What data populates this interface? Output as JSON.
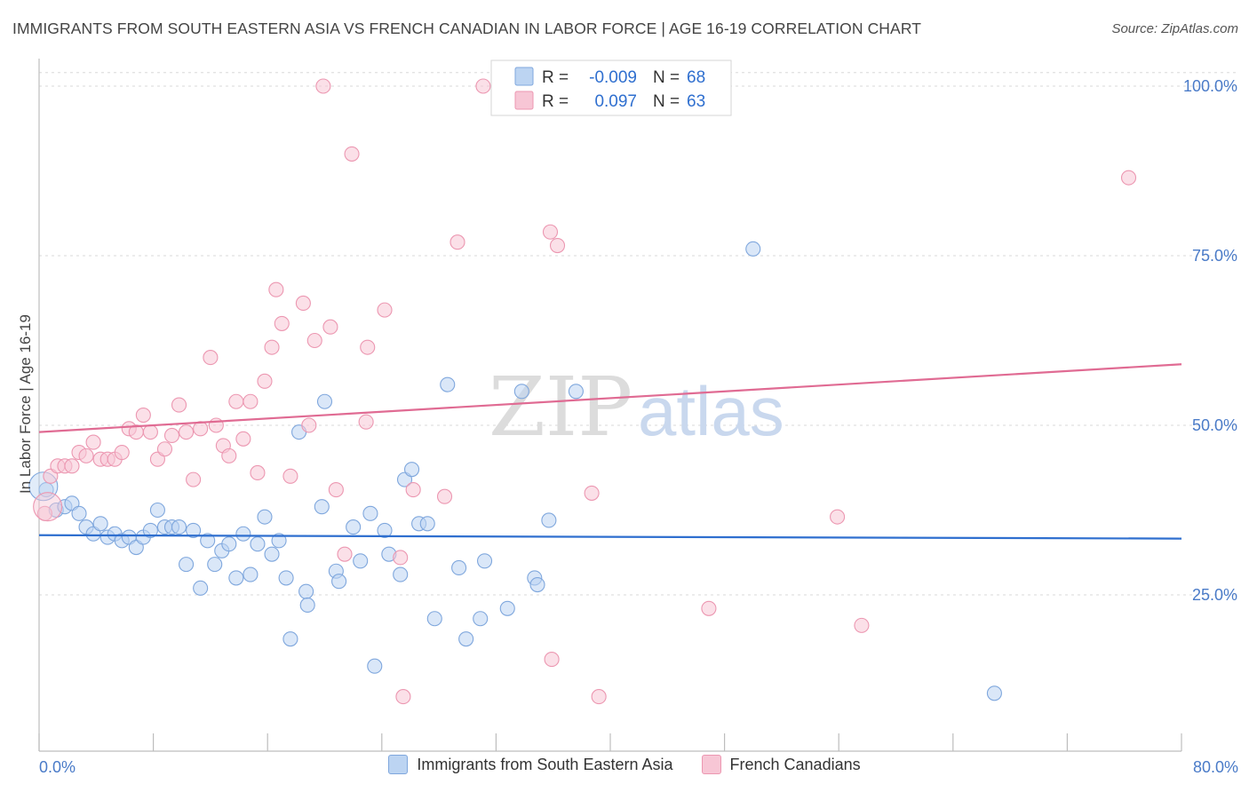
{
  "header": {
    "title": "IMMIGRANTS FROM SOUTH EASTERN ASIA VS FRENCH CANADIAN IN LABOR FORCE | AGE 16-19 CORRELATION CHART",
    "source": "Source: ZipAtlas.com"
  },
  "watermark": {
    "zip": "ZIP",
    "atlas": "atlas"
  },
  "colors": {
    "blue_fill": "#bcd4f2",
    "blue_stroke": "#7fa7dd",
    "blue_line": "#2f6fcf",
    "pink_fill": "#f7c6d5",
    "pink_stroke": "#ec97b1",
    "pink_line": "#e06b93",
    "axis_label": "#4a7bc8",
    "grid": "#d8d8d8"
  },
  "stats_legend": [
    {
      "r_label": "R =",
      "r_value": "-0.009",
      "n_label": "N =",
      "n_value": "68",
      "series": "blue"
    },
    {
      "r_label": "R =",
      "r_value": "0.097",
      "n_label": "N =",
      "n_value": "63",
      "series": "pink"
    }
  ],
  "chart_data": {
    "type": "scatter",
    "title": "IMMIGRANTS FROM SOUTH EASTERN ASIA VS FRENCH CANADIAN IN LABOR FORCE | AGE 16-19 CORRELATION CHART",
    "xlabel": "",
    "ylabel": "In Labor Force | Age 16-19",
    "xlim": [
      0,
      80
    ],
    "ylim": [
      0,
      103
    ],
    "x_tick_labels": {
      "left": "0.0%",
      "right": "80.0%"
    },
    "x_minor_ticks": [
      0,
      8,
      16,
      24,
      32,
      40,
      48,
      56,
      64,
      72,
      80
    ],
    "y_ticks": [
      25,
      50,
      75,
      100
    ],
    "y_tick_labels": [
      "25.0%",
      "50.0%",
      "75.0%",
      "100.0%"
    ],
    "grid": true,
    "series": [
      {
        "name": "Immigrants from South Eastern Asia",
        "color": "blue",
        "trend": {
          "x": [
            0,
            80
          ],
          "y": [
            33.8,
            33.3
          ]
        },
        "points": [
          [
            0.5,
            40.5
          ],
          [
            1.2,
            37.5
          ],
          [
            1.8,
            38.0
          ],
          [
            2.3,
            38.5
          ],
          [
            2.8,
            37.0
          ],
          [
            3.3,
            35.0
          ],
          [
            3.8,
            34.0
          ],
          [
            4.3,
            35.5
          ],
          [
            4.8,
            33.5
          ],
          [
            5.3,
            34.0
          ],
          [
            5.8,
            33.0
          ],
          [
            6.3,
            33.5
          ],
          [
            6.8,
            32.0
          ],
          [
            7.3,
            33.5
          ],
          [
            7.8,
            34.5
          ],
          [
            8.3,
            37.5
          ],
          [
            8.8,
            35.0
          ],
          [
            9.3,
            35.0
          ],
          [
            9.8,
            35.0
          ],
          [
            10.3,
            29.5
          ],
          [
            10.8,
            34.5
          ],
          [
            11.3,
            26.0
          ],
          [
            11.8,
            33.0
          ],
          [
            12.3,
            29.5
          ],
          [
            12.8,
            31.5
          ],
          [
            13.3,
            32.5
          ],
          [
            13.8,
            27.5
          ],
          [
            14.3,
            34.0
          ],
          [
            14.8,
            28.0
          ],
          [
            15.3,
            32.5
          ],
          [
            15.8,
            36.5
          ],
          [
            16.3,
            31.0
          ],
          [
            16.8,
            33.0
          ],
          [
            17.3,
            27.5
          ],
          [
            17.6,
            18.5
          ],
          [
            18.2,
            49.0
          ],
          [
            18.7,
            25.5
          ],
          [
            18.8,
            23.5
          ],
          [
            19.8,
            38.0
          ],
          [
            20.0,
            53.5
          ],
          [
            20.8,
            28.5
          ],
          [
            21.0,
            27.0
          ],
          [
            22.0,
            35.0
          ],
          [
            22.5,
            30.0
          ],
          [
            23.2,
            37.0
          ],
          [
            23.5,
            14.5
          ],
          [
            24.2,
            34.5
          ],
          [
            24.5,
            31.0
          ],
          [
            25.3,
            28.0
          ],
          [
            25.6,
            42.0
          ],
          [
            26.1,
            43.5
          ],
          [
            26.6,
            35.5
          ],
          [
            27.2,
            35.5
          ],
          [
            27.7,
            21.5
          ],
          [
            28.6,
            56.0
          ],
          [
            29.4,
            29.0
          ],
          [
            29.9,
            18.5
          ],
          [
            30.9,
            21.5
          ],
          [
            31.2,
            30.0
          ],
          [
            32.8,
            23.0
          ],
          [
            33.8,
            55.0
          ],
          [
            34.7,
            27.5
          ],
          [
            34.9,
            26.5
          ],
          [
            35.7,
            36.0
          ],
          [
            37.6,
            55.0
          ],
          [
            50.0,
            76.0
          ],
          [
            66.9,
            10.5
          ],
          [
            0.3,
            41.0
          ]
        ]
      },
      {
        "name": "French Canadians",
        "color": "pink",
        "trend": {
          "x": [
            0,
            80
          ],
          "y": [
            49.0,
            59.0
          ]
        },
        "points": [
          [
            0.4,
            37.0
          ],
          [
            0.8,
            42.5
          ],
          [
            1.3,
            44.0
          ],
          [
            1.8,
            44.0
          ],
          [
            2.3,
            44.0
          ],
          [
            2.8,
            46.0
          ],
          [
            3.3,
            45.5
          ],
          [
            3.8,
            47.5
          ],
          [
            4.3,
            45.0
          ],
          [
            4.8,
            45.0
          ],
          [
            5.3,
            45.0
          ],
          [
            5.8,
            46.0
          ],
          [
            6.3,
            49.5
          ],
          [
            6.8,
            49.0
          ],
          [
            7.3,
            51.5
          ],
          [
            7.8,
            49.0
          ],
          [
            8.3,
            45.0
          ],
          [
            8.8,
            46.5
          ],
          [
            9.3,
            48.5
          ],
          [
            9.8,
            53.0
          ],
          [
            10.3,
            49.0
          ],
          [
            10.8,
            42.0
          ],
          [
            11.3,
            49.5
          ],
          [
            12.0,
            60.0
          ],
          [
            12.4,
            50.0
          ],
          [
            12.9,
            47.0
          ],
          [
            13.3,
            45.5
          ],
          [
            13.8,
            53.5
          ],
          [
            14.3,
            48.0
          ],
          [
            14.8,
            53.5
          ],
          [
            15.3,
            43.0
          ],
          [
            15.8,
            56.5
          ],
          [
            16.3,
            61.5
          ],
          [
            16.6,
            70.0
          ],
          [
            17.0,
            65.0
          ],
          [
            17.6,
            42.5
          ],
          [
            18.5,
            68.0
          ],
          [
            18.9,
            50.0
          ],
          [
            19.3,
            62.5
          ],
          [
            19.9,
            100.0
          ],
          [
            20.4,
            64.5
          ],
          [
            20.8,
            40.5
          ],
          [
            21.4,
            31.0
          ],
          [
            21.9,
            90.0
          ],
          [
            22.9,
            50.5
          ],
          [
            23.0,
            61.5
          ],
          [
            24.2,
            67.0
          ],
          [
            25.3,
            30.5
          ],
          [
            25.5,
            10.0
          ],
          [
            26.2,
            40.5
          ],
          [
            28.4,
            39.5
          ],
          [
            29.3,
            77.0
          ],
          [
            31.1,
            100.0
          ],
          [
            35.8,
            78.5
          ],
          [
            36.3,
            76.5
          ],
          [
            35.9,
            15.5
          ],
          [
            38.7,
            40.0
          ],
          [
            39.2,
            10.0
          ],
          [
            46.9,
            23.0
          ],
          [
            55.9,
            36.5
          ],
          [
            57.6,
            20.5
          ],
          [
            76.3,
            86.5
          ],
          [
            0.6,
            38.0
          ]
        ]
      }
    ]
  }
}
